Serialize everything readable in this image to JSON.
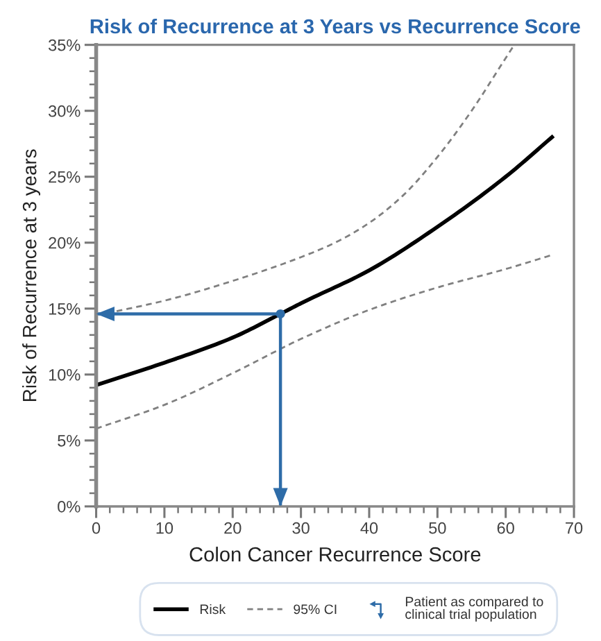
{
  "chart_data": {
    "type": "line",
    "title": "Risk of Recurrence at 3 Years vs Recurrence Score",
    "xlabel": "Colon Cancer Recurrence Score",
    "ylabel": "Risk of Recurrence at 3 years",
    "series": [
      {
        "name": "Risk",
        "color": "#000000",
        "line_style": "solid",
        "x": [
          0,
          10,
          20,
          27,
          30,
          40,
          50,
          60,
          67
        ],
        "values": [
          9.2,
          10.9,
          12.8,
          14.6,
          15.4,
          17.9,
          21.2,
          25.0,
          28.1
        ]
      },
      {
        "name": "95% CI",
        "color": "#808080",
        "line_style": "dashed",
        "x": [
          3,
          10,
          20,
          30,
          35,
          40,
          45,
          50,
          55,
          60,
          61
        ],
        "values": [
          14.8,
          15.6,
          17.1,
          18.9,
          20.0,
          21.5,
          23.6,
          26.5,
          30.0,
          34.0,
          34.8
        ]
      },
      {
        "color": "#808080",
        "line_style": "dashed",
        "x": [
          0,
          10,
          20,
          30,
          40,
          50,
          60,
          67
        ],
        "values": [
          5.9,
          7.7,
          10.1,
          12.7,
          14.9,
          16.6,
          18.0,
          19.1
        ]
      },
      {
        "name": "Patient as compared to\nclinical trial population",
        "color": "#2e6ca8",
        "line_style": "solid",
        "x": [
          0,
          27,
          27
        ],
        "values": [
          14.6,
          14.6,
          0
        ]
      },
      {
        "type": "scatter",
        "color": "#2e6ca8",
        "marker": "circle",
        "x": [
          27
        ],
        "values": [
          14.6
        ]
      }
    ],
    "xlim": [
      0,
      70
    ],
    "ylim": [
      0,
      35
    ],
    "xticks": [
      0,
      {
        "value": 2,
        "label": null
      },
      {
        "value": 4,
        "label": null
      },
      {
        "value": 6,
        "label": null
      },
      {
        "value": 8,
        "label": null
      },
      10,
      {
        "value": 12,
        "label": null
      },
      {
        "value": 14,
        "label": null
      },
      {
        "value": 16,
        "label": null
      },
      {
        "value": 18,
        "label": null
      },
      20,
      {
        "value": 22,
        "label": null
      },
      {
        "value": 24,
        "label": null
      },
      {
        "value": 26,
        "label": null
      },
      {
        "value": 28,
        "label": null
      },
      30,
      {
        "value": 32,
        "label": null
      },
      {
        "value": 34,
        "label": null
      },
      {
        "value": 36,
        "label": null
      },
      {
        "value": 38,
        "label": null
      },
      40,
      {
        "value": 42,
        "label": null
      },
      {
        "value": 44,
        "label": null
      },
      {
        "value": 46,
        "label": null
      },
      {
        "value": 48,
        "label": null
      },
      50,
      {
        "value": 52,
        "label": null
      },
      {
        "value": 54,
        "label": null
      },
      {
        "value": 56,
        "label": null
      },
      {
        "value": 58,
        "label": null
      },
      60,
      {
        "value": 62,
        "label": null
      },
      {
        "value": 64,
        "label": null
      },
      {
        "value": 66,
        "label": null
      },
      {
        "value": 68,
        "label": null
      },
      70
    ],
    "yticks": [
      {
        "value": 0,
        "label": "0%"
      },
      {
        "value": 1,
        "label": null
      },
      {
        "value": 2,
        "label": null
      },
      {
        "value": 3,
        "label": null
      },
      {
        "value": 4,
        "label": null
      },
      {
        "value": 5,
        "label": "5%"
      },
      {
        "value": 6,
        "label": null
      },
      {
        "value": 7,
        "label": null
      },
      {
        "value": 8,
        "label": null
      },
      {
        "value": 9,
        "label": null
      },
      {
        "value": 10,
        "label": "10%"
      },
      {
        "value": 11,
        "label": null
      },
      {
        "value": 12,
        "label": null
      },
      {
        "value": 13,
        "label": null
      },
      {
        "value": 14,
        "label": null
      },
      {
        "value": 15,
        "label": "15%"
      },
      {
        "value": 16,
        "label": null
      },
      {
        "value": 17,
        "label": null
      },
      {
        "value": 18,
        "label": null
      },
      {
        "value": 19,
        "label": null
      },
      {
        "value": 20,
        "label": "20%"
      },
      {
        "value": 21,
        "label": null
      },
      {
        "value": 22,
        "label": null
      },
      {
        "value": 23,
        "label": null
      },
      {
        "value": 24,
        "label": null
      },
      {
        "value": 25,
        "label": "25%"
      },
      {
        "value": 26,
        "label": null
      },
      {
        "value": 27,
        "label": null
      },
      {
        "value": 28,
        "label": null
      },
      {
        "value": 29,
        "label": null
      },
      {
        "value": 30,
        "label": "30%"
      },
      {
        "value": 31,
        "label": null
      },
      {
        "value": 32,
        "label": null
      },
      {
        "value": 33,
        "label": null
      },
      {
        "value": 34,
        "label": null
      },
      {
        "value": 35,
        "label": "35%"
      }
    ],
    "legend": "bottom"
  }
}
